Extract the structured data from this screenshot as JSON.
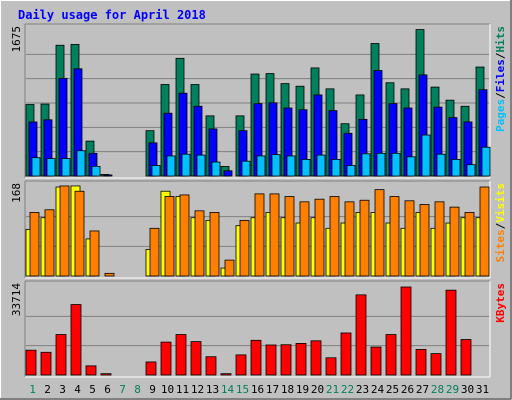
{
  "chart_data": {
    "type": "bar",
    "title": "Daily usage for April 2018",
    "days": [
      "1",
      "2",
      "3",
      "4",
      "5",
      "6",
      "7",
      "8",
      "9",
      "10",
      "11",
      "12",
      "13",
      "14",
      "15",
      "16",
      "17",
      "18",
      "19",
      "20",
      "21",
      "22",
      "23",
      "24",
      "25",
      "26",
      "27",
      "28",
      "29",
      "30",
      "31"
    ],
    "weekend_days": [
      "1",
      "7",
      "8",
      "14",
      "15",
      "21",
      "22",
      "28",
      "29"
    ],
    "panels": [
      {
        "id": "hits-files-pages",
        "ymax": 1675,
        "ymax_label": "1675",
        "right_labels": [
          {
            "text": "Hits",
            "color": "#00805c"
          },
          {
            "text": "Files",
            "color": "#0000ff"
          },
          {
            "text": "Pages",
            "color": "#00c0ff"
          }
        ],
        "series": [
          {
            "name": "Hits",
            "color": "#00805c",
            "values": [
              820,
              825,
              1500,
              1510,
              400,
              18,
              0,
              0,
              520,
              1050,
              1350,
              1050,
              690,
              110,
              690,
              1170,
              1175,
              1060,
              1030,
              1240,
              1000,
              600,
              930,
              1520,
              1070,
              1000,
              1680,
              1020,
              870,
              800,
              1250
            ]
          },
          {
            "name": "Files",
            "color": "#0000ff",
            "values": [
              620,
              645,
              1120,
              1230,
              260,
              12,
              0,
              0,
              380,
              720,
              950,
              800,
              540,
              60,
              520,
              830,
              840,
              780,
              760,
              930,
              750,
              490,
              650,
              1210,
              830,
              780,
              1160,
              790,
              670,
              620,
              990
            ]
          },
          {
            "name": "Pages",
            "color": "#00c0ff",
            "values": [
              210,
              200,
              200,
              290,
              110,
              0,
              0,
              0,
              120,
              230,
              250,
              240,
              160,
              0,
              170,
              230,
              245,
              230,
              190,
              240,
              190,
              120,
              255,
              260,
              260,
              220,
              470,
              250,
              190,
              130,
              330
            ]
          }
        ]
      },
      {
        "id": "visits-sites",
        "ymax": 168,
        "ymax_label": "168",
        "right_labels": [
          {
            "text": "Visits",
            "color": "#ffff00"
          },
          {
            "text": "Sites",
            "color": "#ff8000"
          }
        ],
        "series": [
          {
            "name": "Visits",
            "color": "#ffff00",
            "values": [
              88,
              110,
              168,
              170,
              70,
              0,
              0,
              0,
              50,
              160,
              150,
              110,
              105,
              15,
              95,
              110,
              120,
              110,
              100,
              110,
              90,
              100,
              120,
              120,
              100,
              90,
              120,
              90,
              100,
              110,
              110
            ]
          },
          {
            "name": "Sites",
            "color": "#ff8000",
            "values": [
              120,
              125,
              170,
              160,
              85,
              5,
              0,
              0,
              90,
              150,
              153,
              123,
              120,
              30,
              105,
              155,
              155,
              150,
              140,
              145,
              150,
              140,
              143,
              163,
              150,
              142,
              135,
              140,
              130,
              120,
              168
            ]
          }
        ]
      },
      {
        "id": "kbytes",
        "ymax": 33714,
        "ymax_label": "33714",
        "right_labels": [
          {
            "text": "KBytes",
            "color": "#ff0000"
          }
        ],
        "series": [
          {
            "name": "KBytes",
            "color": "#ff0000",
            "values": [
              9500,
              8700,
              15500,
              27000,
              3500,
              500,
              0,
              0,
              5000,
              12600,
              15500,
              12800,
              7000,
              500,
              7700,
              13300,
              11500,
              11600,
              12100,
              13100,
              6600,
              16100,
              30700,
              10700,
              15500,
              33714,
              9800,
              8200,
              32500,
              13600,
              0
            ]
          }
        ]
      }
    ]
  }
}
